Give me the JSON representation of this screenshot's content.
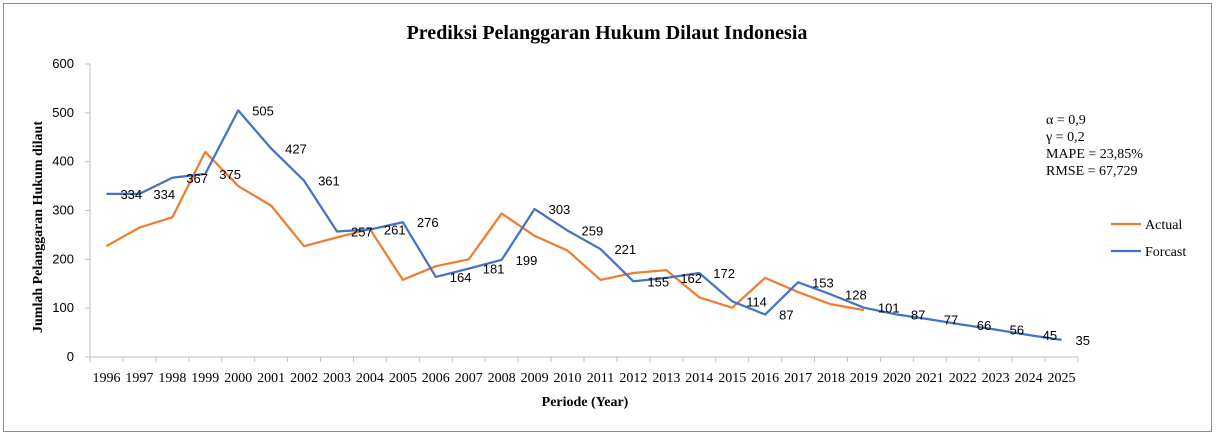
{
  "colors": {
    "actual": "#ED7D31",
    "forecast": "#4472C4",
    "axis": "#bfbfbf"
  },
  "chart_data": {
    "type": "line",
    "title": "Prediksi Pelanggaran Hukum Dilaut Indonesia",
    "xlabel": "Periode (Year)",
    "ylabel": "Jumlah Pelanggaran Hukum dilaut",
    "ylim": [
      0,
      600
    ],
    "yticks": [
      "0",
      "100",
      "200",
      "300",
      "400",
      "500",
      "600"
    ],
    "grid": false,
    "legend_position": "right",
    "categories": [
      "1996",
      "1997",
      "1998",
      "1999",
      "2000",
      "2001",
      "2002",
      "2003",
      "2004",
      "2005",
      "2006",
      "2007",
      "2008",
      "2009",
      "2010",
      "2011",
      "2012",
      "2013",
      "2014",
      "2015",
      "2016",
      "2017",
      "2018",
      "2019",
      "2020",
      "2021",
      "2022",
      "2023",
      "2024",
      "2025"
    ],
    "series": [
      {
        "name": "Actual",
        "values": [
          227,
          265,
          286,
          420,
          350,
          310,
          227,
          245,
          262,
          158,
          186,
          200,
          294,
          248,
          218,
          158,
          172,
          178,
          122,
          101,
          162,
          133,
          108,
          96,
          null,
          null,
          null,
          null,
          null,
          null
        ]
      },
      {
        "name": "Forcast",
        "values": [
          334,
          334,
          367,
          375,
          505,
          427,
          361,
          257,
          261,
          276,
          164,
          181,
          199,
          303,
          259,
          221,
          155,
          162,
          172,
          114,
          87,
          153,
          128,
          101,
          87,
          77,
          66,
          56,
          45,
          35
        ]
      }
    ],
    "data_labels": [
      "334",
      "334",
      "367",
      "375",
      "505",
      "427",
      "361",
      "257",
      "261",
      "276",
      "164",
      "181",
      "199",
      "303",
      "259",
      "221",
      "155",
      "162",
      "172",
      "114",
      "87",
      "153",
      "128",
      "101",
      "87",
      "77",
      "66",
      "56",
      "45",
      "35"
    ],
    "annotations": [
      "α = 0,9",
      "γ = 0,2",
      "MAPE = 23,85%",
      "RMSE = 67,729"
    ]
  }
}
